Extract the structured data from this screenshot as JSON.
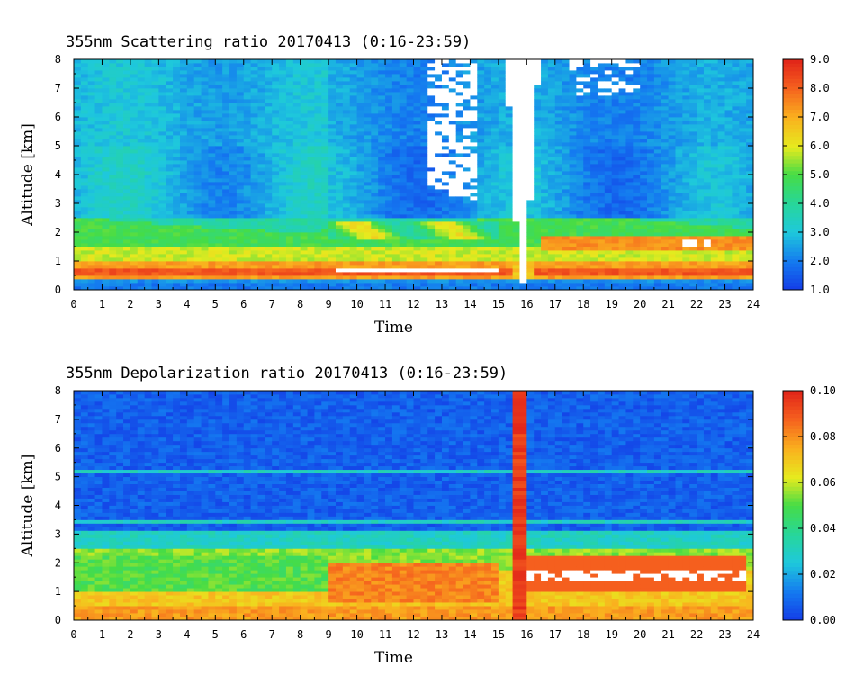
{
  "chart_data": [
    {
      "type": "heatmap",
      "title": "355nm Scattering ratio  20170413 (0:16-23:59)",
      "xlabel": "Time",
      "ylabel": "Altitude [km]",
      "xlim": [
        0,
        24
      ],
      "ylim": [
        0,
        8
      ],
      "x_ticks": [
        "0",
        "1",
        "2",
        "3",
        "4",
        "5",
        "6",
        "7",
        "8",
        "9",
        "10",
        "11",
        "12",
        "13",
        "14",
        "15",
        "16",
        "17",
        "18",
        "19",
        "20",
        "21",
        "22",
        "23",
        "24"
      ],
      "y_ticks": [
        "0",
        "1",
        "2",
        "3",
        "4",
        "5",
        "6",
        "7",
        "8"
      ],
      "colorbar": {
        "range": [
          1.0,
          9.0
        ],
        "tick_labels": [
          "1.0",
          "2.0",
          "3.0",
          "4.0",
          "5.0",
          "6.0",
          "7.0",
          "8.0",
          "9.0"
        ]
      },
      "layers": [
        {
          "feature": "ground band",
          "alt_range": [
            0.2,
            0.4
          ],
          "value": 2.2
        },
        {
          "feature": "boundary layer core",
          "alt_range": [
            0.4,
            1.0
          ],
          "value": 7.8
        },
        {
          "feature": "aerosol layer",
          "alt_range": [
            1.0,
            2.5
          ],
          "value": 4.5
        },
        {
          "feature": "free troposphere",
          "alt_range": [
            2.5,
            8.0
          ],
          "value": 2.3
        },
        {
          "feature": "saturated (white) near-surface",
          "time_range": [
            9.3,
            15.1
          ],
          "alt_range": [
            0.6,
            0.75
          ],
          "value": 9.0
        },
        {
          "feature": "cloud (white)",
          "time_range": [
            12.5,
            14.2
          ],
          "alt_range": [
            3.3,
            8.0
          ],
          "value": 9.0
        },
        {
          "feature": "precipitation column (white)",
          "time_range": [
            15.5,
            16.2
          ],
          "alt_range": [
            0.2,
            8.0
          ],
          "value": 9.0
        }
      ]
    },
    {
      "type": "heatmap",
      "title": "355nm Depolarization ratio  20170413 (0:16-23:59)",
      "xlabel": "Time",
      "ylabel": "Altitude [km]",
      "xlim": [
        0,
        24
      ],
      "ylim": [
        0,
        8
      ],
      "x_ticks": [
        "0",
        "1",
        "2",
        "3",
        "4",
        "5",
        "6",
        "7",
        "8",
        "9",
        "10",
        "11",
        "12",
        "13",
        "14",
        "15",
        "16",
        "17",
        "18",
        "19",
        "20",
        "21",
        "22",
        "23",
        "24"
      ],
      "y_ticks": [
        "0",
        "1",
        "2",
        "3",
        "4",
        "5",
        "6",
        "7",
        "8"
      ],
      "colorbar": {
        "range": [
          0.0,
          0.1
        ],
        "tick_labels": [
          "0.00",
          "0.02",
          "0.04",
          "0.06",
          "0.08",
          "0.10"
        ]
      },
      "layers": [
        {
          "feature": "boundary layer",
          "alt_range": [
            0.0,
            2.5
          ],
          "value": 0.07
        },
        {
          "feature": "transition",
          "alt_range": [
            2.5,
            3.1
          ],
          "value": 0.03
        },
        {
          "feature": "free troposphere",
          "alt_range": [
            3.1,
            8.0
          ],
          "value": 0.005
        },
        {
          "feature": "high depolarization column",
          "time_range": [
            15.6,
            16.0
          ],
          "alt_range": [
            0.0,
            8.0
          ],
          "value": 0.095
        },
        {
          "feature": "saturated (white) layer",
          "time_range": [
            16.0,
            23.7
          ],
          "alt_range": [
            1.3,
            1.8
          ],
          "value": 0.1
        }
      ]
    }
  ]
}
